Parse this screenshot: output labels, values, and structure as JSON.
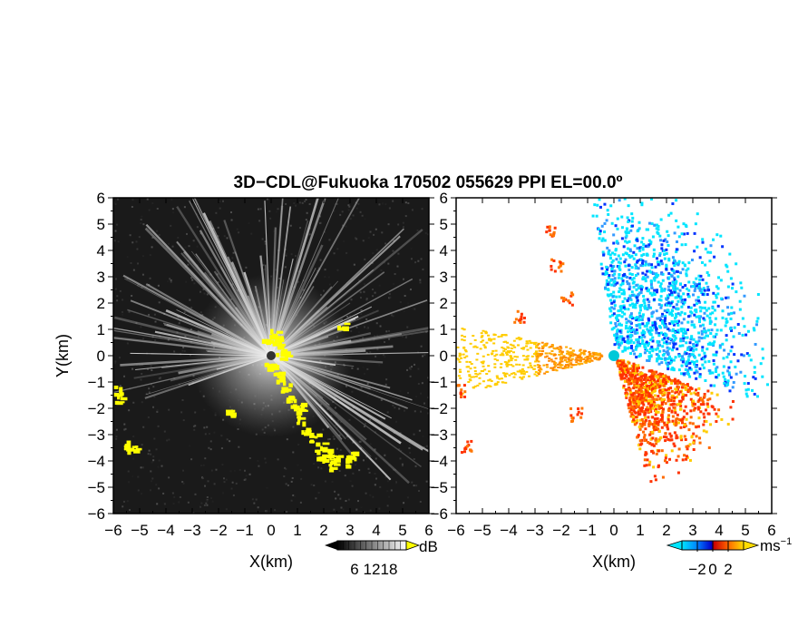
{
  "title": "3D−CDL@Fukuoka 170502 055629 PPI EL=00.0º",
  "chart_data": [
    {
      "type": "heatmap",
      "panel": "reflectivity",
      "xlabel": "X(km)",
      "ylabel": "Y(km)",
      "xlim": [
        -6,
        6
      ],
      "ylim": [
        -6,
        6
      ],
      "x_ticks": [
        "−6",
        "−5",
        "−4",
        "−3",
        "−2",
        "−1",
        "0",
        "1",
        "2",
        "3",
        "4",
        "5",
        "6"
      ],
      "y_ticks": [
        "−6",
        "−5",
        "−4",
        "−3",
        "−2",
        "−1",
        "0",
        "1",
        "2",
        "3",
        "4",
        "5",
        "6"
      ],
      "colorbar": {
        "unit": "dB",
        "ticks": [
          "6",
          "12",
          "18"
        ],
        "range": [
          0,
          24
        ],
        "extend": "both"
      },
      "background_color": "#1a1a1a",
      "highlight_color": "#ffff00"
    },
    {
      "type": "heatmap",
      "panel": "doppler_velocity",
      "xlabel": "X(km)",
      "ylabel": "",
      "xlim": [
        -6,
        6
      ],
      "ylim": [
        -6,
        6
      ],
      "x_ticks": [
        "−6",
        "−5",
        "−4",
        "−3",
        "−2",
        "−1",
        "0",
        "1",
        "2",
        "3",
        "4",
        "5",
        "6"
      ],
      "y_ticks": [
        "−6",
        "−5",
        "−4",
        "−3",
        "−2",
        "−1",
        "0",
        "1",
        "2",
        "3",
        "4",
        "5",
        "6"
      ],
      "colorbar": {
        "unit": "ms",
        "unit_exponent": "−1",
        "ticks": [
          "−2",
          "0",
          "2"
        ],
        "range": [
          -4,
          4
        ],
        "extend": "both"
      },
      "colors": {
        "approaching": "#00e5ff",
        "approaching_dark": "#0033ff",
        "receding": "#ff3300",
        "receding_light": "#ffcc00"
      }
    }
  ]
}
